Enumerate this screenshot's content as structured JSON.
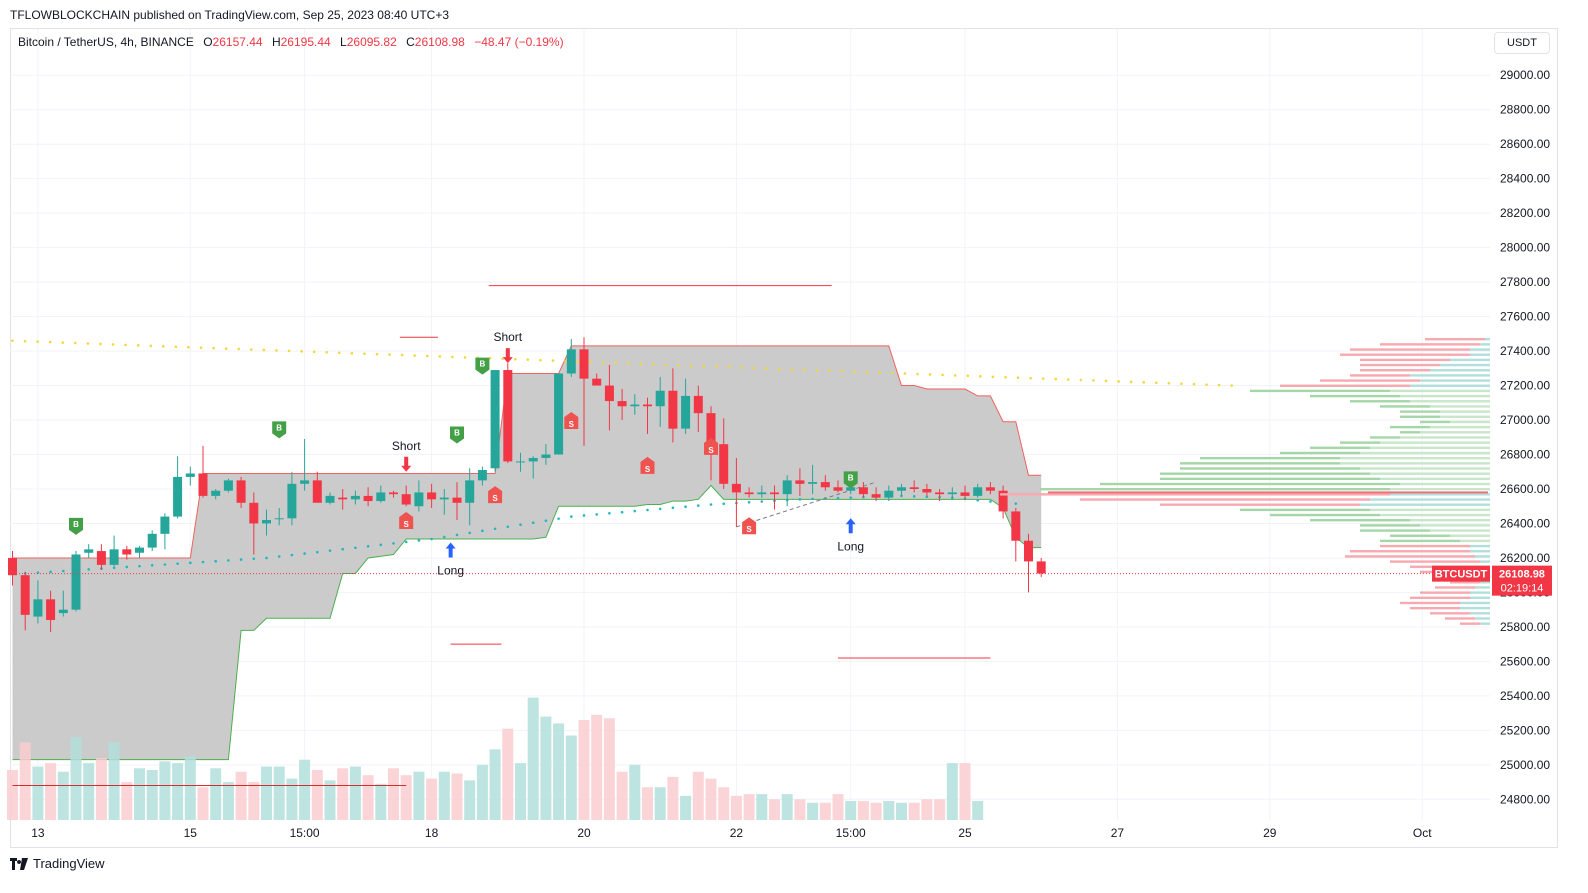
{
  "header": {
    "publisher_line": "TFLOWBLOCKCHAIN published on TradingView.com, Sep 25, 2023 08:40 UTC+3"
  },
  "legend": {
    "symbol": "Bitcoin / TetherUS, 4h, BINANCE",
    "open_label": "O",
    "open": "26157.44",
    "high_label": "H",
    "high": "26195.44",
    "low_label": "L",
    "low": "26095.82",
    "close_label": "C",
    "close": "26108.98",
    "change": "−48.47 (−0.19%)"
  },
  "currency_button": "USDT",
  "footer": {
    "brand": "TradingView"
  },
  "colors": {
    "up": "#26a69a",
    "down": "#f23645",
    "vol_up": "#b2dfdb",
    "vol_down": "#facdd0",
    "band_fill": "#c8c8c8",
    "band_upper": "#f0625f",
    "band_lower": "#4caf50",
    "ema_dots": "#f5d63b",
    "trail_dots": "#22b5c2"
  },
  "price_label": {
    "ticker": "BTCUSDT",
    "price": "26108.98",
    "countdown": "02:19:14"
  },
  "chart_data": {
    "type": "candlestick",
    "timeframe": "4h",
    "ylim": [
      24680,
      29100
    ],
    "y_ticks": [
      "29000.00",
      "28800.00",
      "28600.00",
      "28400.00",
      "28200.00",
      "28000.00",
      "27800.00",
      "27600.00",
      "27400.00",
      "27200.00",
      "27000.00",
      "26800.00",
      "26600.00",
      "26400.00",
      "26200.00",
      "26000.00",
      "25800.00",
      "25600.00",
      "25400.00",
      "25200.00",
      "25000.00",
      "24800.00"
    ],
    "x_ticks": [
      {
        "label": "13",
        "bar": 2
      },
      {
        "label": "15",
        "bar": 14
      },
      {
        "label": "15:00",
        "bar": 23
      },
      {
        "label": "18",
        "bar": 33
      },
      {
        "label": "20",
        "bar": 45
      },
      {
        "label": "22",
        "bar": 57
      },
      {
        "label": "15:00",
        "bar": 66
      },
      {
        "label": "25",
        "bar": 75
      },
      {
        "label": "27",
        "bar": 87
      },
      {
        "label": "29",
        "bar": 99
      },
      {
        "label": "Oct",
        "bar": 111
      }
    ],
    "candles": [
      [
        26200,
        26240,
        26040,
        26100
      ],
      [
        26100,
        26120,
        25780,
        25870
      ],
      [
        25860,
        26070,
        25820,
        25960
      ],
      [
        25960,
        26010,
        25770,
        25840
      ],
      [
        25880,
        26010,
        25860,
        25900
      ],
      [
        25900,
        26240,
        25890,
        26220
      ],
      [
        26230,
        26280,
        26200,
        26250
      ],
      [
        26240,
        26280,
        26130,
        26160
      ],
      [
        26160,
        26330,
        26150,
        26250
      ],
      [
        26250,
        26270,
        26190,
        26220
      ],
      [
        26230,
        26270,
        26200,
        26260
      ],
      [
        26260,
        26360,
        26240,
        26340
      ],
      [
        26340,
        26460,
        26250,
        26440
      ],
      [
        26440,
        26790,
        26430,
        26670
      ],
      [
        26670,
        26730,
        26620,
        26690
      ],
      [
        26690,
        26850,
        26550,
        26560
      ],
      [
        26560,
        26600,
        26540,
        26590
      ],
      [
        26590,
        26660,
        26580,
        26650
      ],
      [
        26650,
        26670,
        26490,
        26520
      ],
      [
        26520,
        26580,
        26220,
        26400
      ],
      [
        26400,
        26480,
        26330,
        26420
      ],
      [
        26430,
        26490,
        26390,
        26430
      ],
      [
        26430,
        26700,
        26390,
        26630
      ],
      [
        26630,
        26890,
        26590,
        26650
      ],
      [
        26650,
        26700,
        26530,
        26520
      ],
      [
        26520,
        26580,
        26510,
        26560
      ],
      [
        26550,
        26600,
        26480,
        26540
      ],
      [
        26540,
        26590,
        26510,
        26560
      ],
      [
        26560,
        26610,
        26500,
        26530
      ],
      [
        26530,
        26620,
        26520,
        26580
      ],
      [
        26580,
        26590,
        26550,
        26570
      ],
      [
        26570,
        26620,
        26500,
        26510
      ],
      [
        26500,
        26650,
        26470,
        26580
      ],
      [
        26580,
        26630,
        26490,
        26540
      ],
      [
        26540,
        26600,
        26450,
        26550
      ],
      [
        26550,
        26640,
        26420,
        26520
      ],
      [
        26520,
        26720,
        26390,
        26650
      ],
      [
        26650,
        26730,
        26620,
        26710
      ],
      [
        26720,
        27290,
        26700,
        27290
      ],
      [
        27290,
        27330,
        26750,
        26760
      ],
      [
        26760,
        26810,
        26700,
        26760
      ],
      [
        26760,
        26790,
        26660,
        26780
      ],
      [
        26780,
        26860,
        26740,
        26800
      ],
      [
        26800,
        27260,
        26800,
        27270
      ],
      [
        27270,
        27470,
        27250,
        27410
      ],
      [
        27410,
        27480,
        26850,
        27240
      ],
      [
        27240,
        27270,
        27210,
        27200
      ],
      [
        27200,
        27320,
        26940,
        27110
      ],
      [
        27110,
        27180,
        27000,
        27080
      ],
      [
        27080,
        27150,
        27030,
        27090
      ],
      [
        27090,
        27130,
        26920,
        27080
      ],
      [
        27080,
        27250,
        26960,
        27170
      ],
      [
        27170,
        27300,
        26870,
        26950
      ],
      [
        26950,
        27240,
        26920,
        27140
      ],
      [
        27140,
        27200,
        26930,
        27040
      ],
      [
        27040,
        27080,
        26650,
        26860
      ],
      [
        26860,
        27010,
        26600,
        26630
      ],
      [
        26630,
        26780,
        26380,
        26580
      ],
      [
        26580,
        26610,
        26550,
        26570
      ],
      [
        26570,
        26620,
        26550,
        26580
      ],
      [
        26580,
        26620,
        26480,
        26570
      ],
      [
        26570,
        26680,
        26500,
        26650
      ],
      [
        26650,
        26720,
        26560,
        26630
      ],
      [
        26630,
        26740,
        26570,
        26640
      ],
      [
        26640,
        26680,
        26590,
        26610
      ],
      [
        26610,
        26650,
        26580,
        26590
      ],
      [
        26590,
        26640,
        26570,
        26610
      ],
      [
        26610,
        26640,
        26550,
        26570
      ],
      [
        26570,
        26610,
        26530,
        26550
      ],
      [
        26550,
        26620,
        26530,
        26590
      ],
      [
        26590,
        26630,
        26560,
        26610
      ],
      [
        26610,
        26650,
        26580,
        26600
      ],
      [
        26600,
        26630,
        26560,
        26580
      ],
      [
        26580,
        26600,
        26530,
        26570
      ],
      [
        26570,
        26610,
        26540,
        26580
      ],
      [
        26580,
        26620,
        26540,
        26560
      ],
      [
        26560,
        26630,
        26550,
        26610
      ],
      [
        26610,
        26640,
        26570,
        26590
      ],
      [
        26590,
        26620,
        26430,
        26470
      ],
      [
        26470,
        26490,
        26180,
        26300
      ],
      [
        26300,
        26340,
        26000,
        26180
      ],
      [
        26180,
        26200,
        26090,
        26110
      ]
    ],
    "volume_scale": [
      24680,
      25800
    ],
    "volume": [
      24970,
      25130,
      24990,
      25010,
      24960,
      25160,
      25010,
      25040,
      25130,
      24900,
      24980,
      24970,
      25020,
      25010,
      25050,
      24870,
      24980,
      24900,
      24960,
      24900,
      24990,
      24990,
      24920,
      25030,
      24970,
      24910,
      24980,
      24990,
      24940,
      24890,
      24980,
      24940,
      24960,
      24920,
      24960,
      24950,
      24910,
      25000,
      25090,
      25210,
      25010,
      25390,
      25280,
      25240,
      25170,
      25260,
      25290,
      25270,
      24960,
      25000,
      24870,
      24870,
      24930,
      24820,
      24960,
      24920,
      24870,
      24820,
      24830,
      24830,
      24800,
      24830,
      24800,
      24780,
      24780,
      24830,
      24790,
      24790,
      24780,
      24790,
      24780,
      24780,
      24800,
      24800,
      25010,
      25010,
      24790
    ],
    "band_upper": [
      26200,
      26200,
      26200,
      26200,
      26200,
      26200,
      26200,
      26200,
      26200,
      26200,
      26200,
      26200,
      26200,
      26200,
      26200,
      26690,
      26690,
      26690,
      26690,
      26690,
      26690,
      26690,
      26690,
      26690,
      26690,
      26690,
      26690,
      26690,
      26690,
      26690,
      26690,
      26690,
      26690,
      26690,
      26690,
      26690,
      26690,
      26690,
      26690,
      27270,
      27270,
      27270,
      27270,
      27270,
      27430,
      27430,
      27430,
      27430,
      27430,
      27430,
      27430,
      27430,
      27430,
      27430,
      27430,
      27430,
      27430,
      27430,
      27430,
      27430,
      27430,
      27430,
      27430,
      27430,
      27430,
      27430,
      27430,
      27430,
      27430,
      27430,
      27200,
      27200,
      27180,
      27180,
      27180,
      27180,
      27140,
      27140,
      26990,
      26990,
      26680,
      26680
    ],
    "band_lower": [
      25030,
      25030,
      25030,
      25030,
      25030,
      25030,
      25030,
      25030,
      25030,
      25030,
      25030,
      25030,
      25030,
      25030,
      25030,
      25030,
      25030,
      25030,
      25780,
      25780,
      25850,
      25850,
      25850,
      25850,
      25850,
      25850,
      26110,
      26110,
      26200,
      26210,
      26220,
      26310,
      26310,
      26310,
      26310,
      26310,
      26310,
      26310,
      26310,
      26310,
      26310,
      26310,
      26320,
      26500,
      26500,
      26500,
      26500,
      26500,
      26500,
      26500,
      26510,
      26510,
      26530,
      26530,
      26540,
      26620,
      26540,
      26540,
      26540,
      26540,
      26540,
      26540,
      26540,
      26540,
      26540,
      26540,
      26540,
      26540,
      26540,
      26540,
      26540,
      26540,
      26540,
      26540,
      26540,
      26540,
      26540,
      26540,
      26490,
      26320,
      26260,
      26260
    ],
    "ema_dots": {
      "start": 27460,
      "end": 27200
    },
    "trail_dots": [
      [
        1,
        26110
      ],
      [
        20,
        26200
      ],
      [
        33,
        26310
      ],
      [
        44,
        26440
      ],
      [
        55,
        26510
      ],
      [
        62,
        26540
      ],
      [
        66,
        26550
      ],
      [
        70,
        26560
      ],
      [
        74,
        26550
      ],
      [
        78,
        26520
      ],
      [
        80,
        26510
      ]
    ],
    "horizontal_lines": [
      {
        "price": 27780,
        "from_bar": 37.5,
        "to_bar": 64.5,
        "color": "#f23645"
      },
      {
        "price": 27480,
        "from_bar": 30.5,
        "to_bar": 33.5,
        "color": "#f23645"
      },
      {
        "price": 25700,
        "from_bar": 34.5,
        "to_bar": 38.5,
        "color": "#f23645"
      },
      {
        "price": 25620,
        "from_bar": 65,
        "to_bar": 77,
        "color": "#f23645"
      },
      {
        "price": 24880,
        "from_bar": 0,
        "to_bar": 31,
        "color": "#d32f2f"
      }
    ],
    "current_price_line": 26108.98,
    "signals": [
      {
        "type": "B",
        "bar": 5,
        "price": 26380,
        "label": ""
      },
      {
        "type": "B",
        "bar": 21,
        "price": 26940,
        "label": ""
      },
      {
        "type": "B",
        "bar": 35,
        "price": 26910,
        "label": ""
      },
      {
        "type": "B",
        "bar": 37,
        "price": 27310,
        "label": ""
      },
      {
        "type": "B",
        "bar": 66,
        "price": 26650,
        "label": ""
      },
      {
        "type": "S",
        "bar": 31,
        "price": 26420,
        "label": ""
      },
      {
        "type": "S",
        "bar": 38,
        "price": 26570,
        "label": ""
      },
      {
        "type": "S",
        "bar": 44,
        "price": 27000,
        "label": ""
      },
      {
        "type": "S",
        "bar": 50,
        "price": 26740,
        "label": ""
      },
      {
        "type": "S",
        "bar": 55,
        "price": 26850,
        "label": ""
      },
      {
        "type": "S",
        "bar": 58,
        "price": 26390,
        "label": ""
      }
    ],
    "arrows": [
      {
        "dir": "down",
        "bar": 31,
        "price": 26700,
        "text": "Short"
      },
      {
        "dir": "down",
        "bar": 39,
        "price": 27330,
        "text": "Short"
      },
      {
        "dir": "up",
        "bar": 34.5,
        "price": 26290,
        "text": "Long"
      },
      {
        "dir": "up",
        "bar": 66,
        "price": 26430,
        "text": "Long"
      }
    ],
    "volume_profile": [
      [
        27470,
        60,
        5,
        "down"
      ],
      [
        27440,
        100,
        10,
        "down"
      ],
      [
        27410,
        120,
        20,
        "down"
      ],
      [
        27380,
        130,
        20,
        "down"
      ],
      [
        27350,
        90,
        40,
        "down"
      ],
      [
        27320,
        80,
        50,
        "down"
      ],
      [
        27290,
        70,
        60,
        "down"
      ],
      [
        27260,
        60,
        80,
        "down"
      ],
      [
        27230,
        100,
        70,
        "down"
      ],
      [
        27200,
        130,
        80,
        "down"
      ],
      [
        27170,
        140,
        100,
        "up"
      ],
      [
        27140,
        90,
        90,
        "up"
      ],
      [
        27110,
        60,
        80,
        "up"
      ],
      [
        27080,
        50,
        60,
        "up"
      ],
      [
        27050,
        40,
        50,
        "up"
      ],
      [
        27020,
        40,
        50,
        "up"
      ],
      [
        26990,
        30,
        40,
        "up"
      ],
      [
        26960,
        40,
        60,
        "up"
      ],
      [
        26930,
        20,
        70,
        "up"
      ],
      [
        26900,
        30,
        90,
        "up"
      ],
      [
        26870,
        40,
        110,
        "up"
      ],
      [
        26840,
        60,
        120,
        "up"
      ],
      [
        26810,
        80,
        130,
        "up"
      ],
      [
        26780,
        140,
        150,
        "up"
      ],
      [
        26750,
        160,
        150,
        "up"
      ],
      [
        26720,
        180,
        130,
        "up"
      ],
      [
        26690,
        210,
        120,
        "up"
      ],
      [
        26660,
        220,
        110,
        "up"
      ],
      [
        26630,
        300,
        90,
        "up"
      ],
      [
        26600,
        350,
        100,
        "up"
      ],
      [
        26570,
        390,
        100,
        "down"
      ],
      [
        26540,
        290,
        120,
        "down"
      ],
      [
        26510,
        200,
        130,
        "down"
      ],
      [
        26480,
        130,
        120,
        "up"
      ],
      [
        26450,
        110,
        110,
        "up"
      ],
      [
        26420,
        100,
        80,
        "up"
      ],
      [
        26390,
        60,
        70,
        "up"
      ],
      [
        26360,
        70,
        60,
        "up"
      ],
      [
        26330,
        60,
        40,
        "up"
      ],
      [
        26300,
        80,
        30,
        "up"
      ],
      [
        26270,
        90,
        20,
        "down"
      ],
      [
        26240,
        120,
        20,
        "down"
      ],
      [
        26210,
        130,
        15,
        "down"
      ],
      [
        26180,
        90,
        10,
        "down"
      ],
      [
        26150,
        70,
        10,
        "down"
      ],
      [
        26120,
        60,
        10,
        "down"
      ],
      [
        26090,
        40,
        10,
        "down"
      ],
      [
        26060,
        30,
        10,
        "down"
      ],
      [
        26030,
        40,
        15,
        "down"
      ],
      [
        26000,
        50,
        20,
        "down"
      ],
      [
        25970,
        60,
        20,
        "down"
      ],
      [
        25940,
        60,
        30,
        "down"
      ],
      [
        25910,
        50,
        30,
        "down"
      ],
      [
        25880,
        40,
        20,
        "down"
      ],
      [
        25850,
        30,
        15,
        "down"
      ],
      [
        25820,
        20,
        10,
        "down"
      ]
    ],
    "title": "",
    "xlabel": "",
    "ylabel": "",
    "grid": true,
    "legend_position": "top-left"
  }
}
